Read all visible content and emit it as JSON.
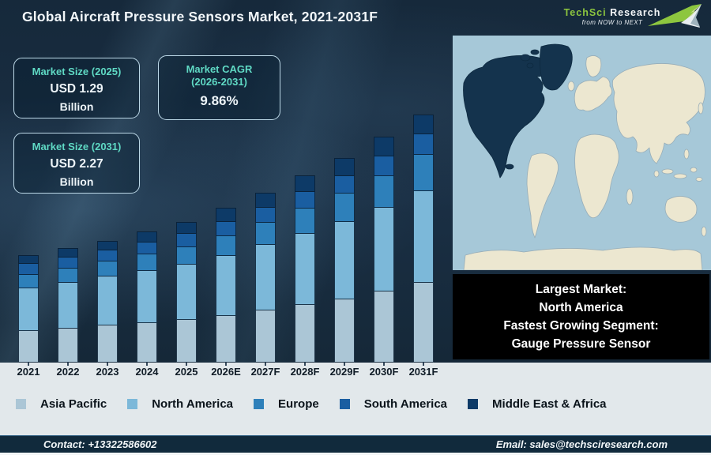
{
  "title": "Global Aircraft Pressure Sensors Market, 2021-2031F",
  "logo": {
    "brand_primary": "TechSci",
    "brand_secondary": "Research",
    "tagline": "from NOW to NEXT",
    "accent_color": "#8dc63f"
  },
  "info_boxes": {
    "size_2025": {
      "label": "Market Size (2025)",
      "value": "USD 1.29",
      "unit": "Billion"
    },
    "cagr": {
      "label_line1": "Market CAGR",
      "label_line2": "(2026-2031)",
      "value": "9.86%"
    },
    "size_2031": {
      "label": "Market Size (2031)",
      "value": "USD 2.27",
      "unit": "Billion"
    }
  },
  "highlight_box": {
    "line1": "Largest Market:",
    "line2": "North America",
    "line3": "Fastest Growing Segment:",
    "line4": "Gauge Pressure Sensor"
  },
  "map": {
    "highlight_region": "North America",
    "highlight_color": "#14334d",
    "land_color": "#ece7d0",
    "land_stroke": "#97adb8",
    "ocean_color": "#a6c8d8"
  },
  "chart_data": {
    "type": "bar",
    "stacked": true,
    "unit": "USD Billion",
    "categories": [
      "2021",
      "2022",
      "2023",
      "2024",
      "2025",
      "2026E",
      "2027F",
      "2028F",
      "2029F",
      "2030F",
      "2031F"
    ],
    "series": [
      {
        "name": "Asia Pacific",
        "color": "#abc6d6",
        "values": [
          0.29,
          0.31,
          0.34,
          0.36,
          0.39,
          0.43,
          0.48,
          0.53,
          0.58,
          0.65,
          0.73
        ]
      },
      {
        "name": "North America",
        "color": "#7cb8d9",
        "values": [
          0.39,
          0.42,
          0.45,
          0.48,
          0.51,
          0.55,
          0.6,
          0.65,
          0.71,
          0.77,
          0.84
        ]
      },
      {
        "name": "Europe",
        "color": "#2e80ba",
        "values": [
          0.12,
          0.13,
          0.14,
          0.15,
          0.16,
          0.18,
          0.2,
          0.23,
          0.26,
          0.29,
          0.33
        ]
      },
      {
        "name": "South America",
        "color": "#1a5ea1",
        "values": [
          0.1,
          0.1,
          0.1,
          0.11,
          0.12,
          0.13,
          0.14,
          0.15,
          0.16,
          0.18,
          0.19
        ]
      },
      {
        "name": "Middle East & Africa",
        "color": "#0d3a67",
        "values": [
          0.08,
          0.09,
          0.09,
          0.1,
          0.11,
          0.13,
          0.14,
          0.15,
          0.17,
          0.18,
          0.18
        ]
      }
    ],
    "totals": [
      0.98,
      1.05,
      1.12,
      1.2,
      1.29,
      1.42,
      1.56,
      1.71,
      1.88,
      2.07,
      2.27
    ],
    "ylim": [
      0,
      2.4
    ],
    "grid": false,
    "legend_position": "bottom"
  },
  "footer": {
    "contact": "Contact: +13322586602",
    "email": "Email: sales@techsciresearch.com"
  }
}
